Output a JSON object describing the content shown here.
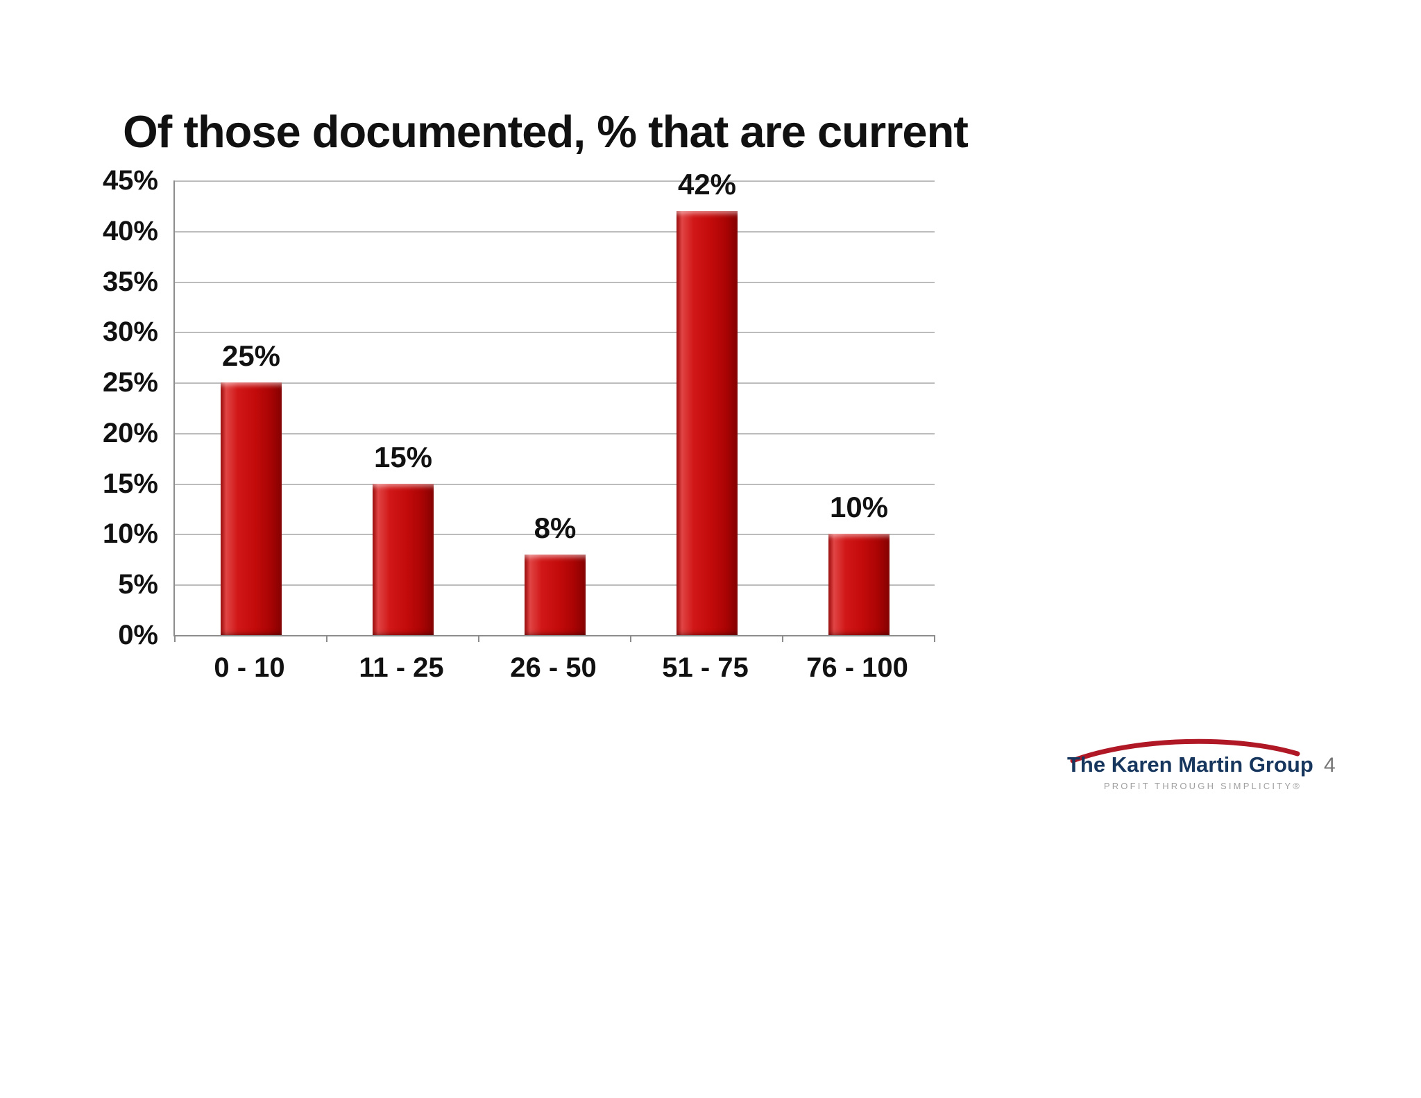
{
  "chart_data": {
    "type": "bar",
    "title": "Of those documented, % that are current",
    "categories": [
      "0 - 10",
      "11 - 25",
      "26 - 50",
      "51 - 75",
      "76 - 100"
    ],
    "values": [
      25,
      15,
      8,
      42,
      10
    ],
    "data_labels": [
      "25%",
      "15%",
      "8%",
      "42%",
      "10%"
    ],
    "xlabel": "",
    "ylabel": "",
    "ylim": [
      0,
      45
    ],
    "y_ticks": [
      "45%",
      "40%",
      "35%",
      "30%",
      "25%",
      "20%",
      "15%",
      "10%",
      "5%",
      "0%"
    ],
    "grid": true,
    "legend": "none",
    "bar_color": "#c00000",
    "grid_color": "#bcbcbc",
    "axis_color": "#8c8c8c"
  },
  "footer": {
    "logo_text": "The Karen Martin Group",
    "logo_tagline": "PROFIT THROUGH SIMPLICITY®",
    "logo_text_color": "#17365d",
    "logo_accent_color": "#b01826",
    "page_number": "4"
  }
}
